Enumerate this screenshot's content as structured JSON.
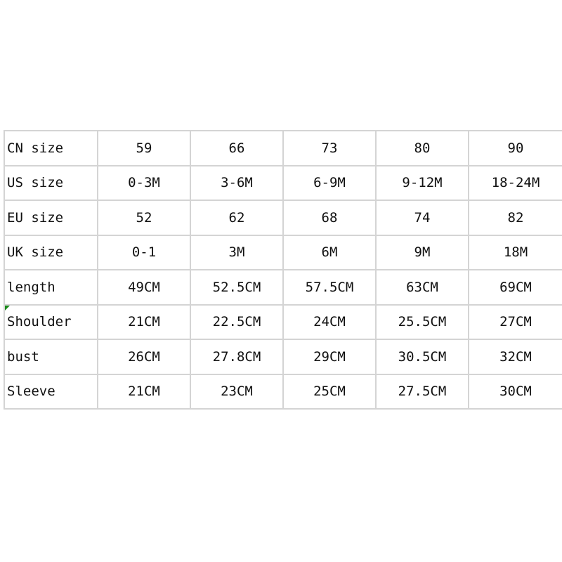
{
  "rows": [
    {
      "label": "CN size",
      "values": [
        "59",
        "66",
        "73",
        "80",
        "90"
      ]
    },
    {
      "label": "US size",
      "values": [
        "0-3M",
        "3-6M",
        "6-9M",
        "9-12M",
        "18-24M"
      ]
    },
    {
      "label": "EU size",
      "values": [
        "52",
        "62",
        "68",
        "74",
        "82"
      ]
    },
    {
      "label": "UK size",
      "values": [
        "0-1",
        "3M",
        "6M",
        "9M",
        "18M"
      ]
    },
    {
      "label": "length",
      "values": [
        "49CM",
        "52.5CM",
        "57.5CM",
        "63CM",
        "69CM"
      ]
    },
    {
      "label": "Shoulder",
      "values": [
        "21CM",
        "22.5CM",
        "24CM",
        "25.5CM",
        "27CM"
      ]
    },
    {
      "label": "bust",
      "values": [
        "26CM",
        "27.8CM",
        "29CM",
        "30.5CM",
        "32CM"
      ]
    },
    {
      "label": "Sleeve",
      "values": [
        "21CM",
        "23CM",
        "25CM",
        "27.5CM",
        "30CM"
      ]
    }
  ],
  "colors": {
    "grid": "#d4d4d4",
    "comment_flag": "#1a8a1a"
  }
}
